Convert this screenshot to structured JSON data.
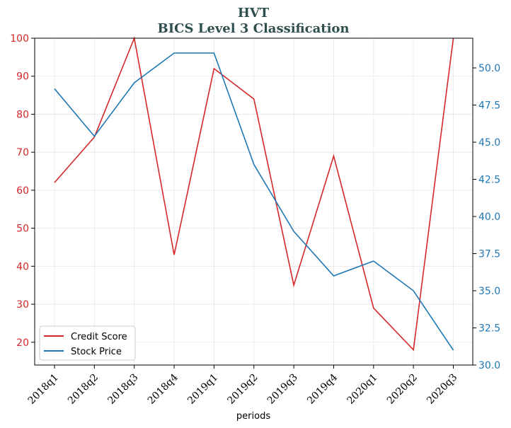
{
  "chart_data": {
    "type": "line",
    "title": "HVT",
    "subtitle": "BICS Level 3 Classification",
    "xlabel": "periods",
    "categories": [
      "2018q1",
      "2018q2",
      "2018q3",
      "2018q4",
      "2019q1",
      "2019q2",
      "2019q3",
      "2019q4",
      "2020q1",
      "2020q2",
      "2020q3"
    ],
    "left_axis": {
      "ylim": [
        14,
        100
      ],
      "ticks": [
        20,
        30,
        40,
        50,
        60,
        70,
        80,
        90,
        100
      ],
      "color": "#d62728"
    },
    "right_axis": {
      "ylim": [
        30.0,
        52.0
      ],
      "ticks": [
        "30.0",
        "32.5",
        "35.0",
        "37.5",
        "40.0",
        "42.5",
        "45.0",
        "47.5",
        "50.0"
      ],
      "color": "#1f77b4"
    },
    "series": [
      {
        "name": "Credit Score",
        "axis": "left",
        "color": "#d62728",
        "values": [
          62,
          74,
          100,
          43,
          92,
          84,
          35,
          69,
          29,
          18,
          100
        ]
      },
      {
        "name": "Stock Price",
        "axis": "right",
        "color": "#1f77b4",
        "values": [
          48.6,
          45.4,
          49.0,
          51.0,
          51.0,
          43.5,
          39.0,
          36.0,
          37.0,
          35.0,
          31.0
        ]
      }
    ],
    "grid": true,
    "legend_position": "lower-left"
  }
}
